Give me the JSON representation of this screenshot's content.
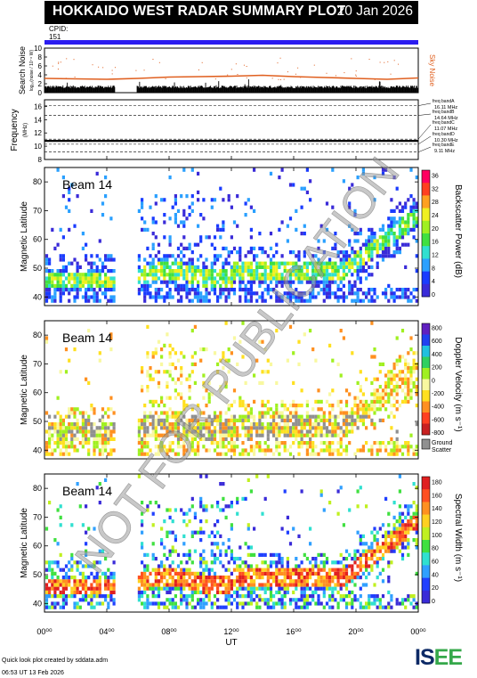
{
  "header": {
    "title": "HOKKAIDO WEST RADAR SUMMARY PLOT",
    "date": "20 Jan 2026"
  },
  "cpid": {
    "label": "CPID:",
    "value": "151"
  },
  "noise_panel": {
    "ylabel": "Search Noise",
    "unit": "log₁₀(noise / 10⁻⁶ W)",
    "side_label": "Sky Noise",
    "yticks": [
      "0",
      "2",
      "4",
      "6",
      "8",
      "10"
    ]
  },
  "freq_panel": {
    "ylabel": "Frequency",
    "unit": "(MHz)",
    "yticks": [
      "8",
      "10",
      "12",
      "14",
      "16"
    ],
    "bands": [
      {
        "name": "freq bandA",
        "value": "16.11 MHz"
      },
      {
        "name": "freq bandB",
        "value": "14.64 MHz"
      },
      {
        "name": "freq bandC",
        "value": "11.07 MHz"
      },
      {
        "name": "freq bandD",
        "value": "10.30 MHz"
      },
      {
        "name": "freq bandE",
        "value": "9.11 MHz"
      }
    ]
  },
  "panels": [
    {
      "beam": "Beam 14",
      "ylabel": "Magnetic Latitude",
      "cbar_label": "Backscatter Power (dB)",
      "cbar_ticks": [
        "0",
        "4",
        "8",
        "12",
        "16",
        "20",
        "24",
        "28",
        "32",
        "36"
      ]
    },
    {
      "beam": "Beam 14",
      "ylabel": "Magnetic Latitude",
      "cbar_label": "Doppler Velocity (m s⁻¹)",
      "cbar_ticks": [
        "-800",
        "-600",
        "-400",
        "-200",
        "0",
        "200",
        "400",
        "600",
        "800"
      ],
      "ground_label_1": "Ground",
      "ground_label_2": "Scatter"
    },
    {
      "beam": "Beam 14",
      "ylabel": "Magnetic Latitude",
      "cbar_label": "Spectral Width (m s⁻¹)",
      "cbar_ticks": [
        "0",
        "20",
        "40",
        "60",
        "80",
        "100",
        "120",
        "140",
        "160",
        "180"
      ]
    }
  ],
  "lat_ticks": [
    "40",
    "50",
    "60",
    "70",
    "80"
  ],
  "xaxis": {
    "ticks": [
      "00⁰⁰",
      "04⁰⁰",
      "08⁰⁰",
      "12⁰⁰",
      "16⁰⁰",
      "20⁰⁰",
      "00⁰⁰"
    ],
    "label": "UT"
  },
  "watermark": "NOT FOR PUBLICATION",
  "footer": {
    "line1": "Quick look plot created by sddata.adm",
    "line2": "06:53 UT 13 Feb 2026"
  },
  "logo": {
    "text1": "IS",
    "text2": "E",
    "text3": "E"
  },
  "colors": {
    "cpid_bar": "#2b1cf0",
    "sky_noise": "#e06020",
    "power_scale": [
      "#3a2bd8",
      "#1a3cff",
      "#2aa0ff",
      "#30e0d0",
      "#40e040",
      "#a0f020",
      "#f0f020",
      "#ffa020",
      "#ff4020",
      "#ff0060"
    ],
    "velocity_scale": [
      "#c82020",
      "#ff4020",
      "#ff9020",
      "#ffe020",
      "#f8f8a0",
      "#a0f020",
      "#30d060",
      "#20c0e0",
      "#2040f0",
      "#6020c0"
    ],
    "width_scale": [
      "#3a2bd8",
      "#2040ff",
      "#30a0ff",
      "#30e0d0",
      "#40e040",
      "#c0f020",
      "#ffd020",
      "#ff9020",
      "#ff5020",
      "#e02020"
    ],
    "ground": "#909090"
  },
  "chart_data": [
    {
      "type": "line",
      "title": "Search Noise",
      "ylabel": "Search Noise",
      "ylim": [
        0,
        10
      ],
      "x_range_ut_hours": [
        0,
        24
      ],
      "series": [
        {
          "name": "Sky Noise",
          "x": [
            0,
            2,
            4,
            6,
            8,
            10,
            12,
            14,
            16,
            18,
            20,
            22,
            24
          ],
          "values": [
            3.2,
            3.1,
            3.0,
            3.2,
            3.5,
            3.6,
            3.7,
            3.9,
            3.6,
            3.4,
            3.2,
            3.0,
            3.3
          ]
        }
      ]
    },
    {
      "type": "line",
      "title": "Frequency",
      "ylabel": "Frequency",
      "ylim": [
        8,
        17
      ],
      "x_range_ut_hours": [
        0,
        24
      ],
      "series": [
        {
          "x": [
            0,
            6,
            12,
            18,
            24
          ],
          "values": [
            10.8,
            10.8,
            10.8,
            10.8,
            10.8
          ]
        }
      ]
    },
    {
      "type": "heatmap",
      "title": "Beam 14",
      "ylabel": "Magnetic Latitude",
      "ylim": [
        37,
        85
      ],
      "x_range_ut_hours": [
        0,
        24
      ],
      "clim": [
        0,
        38
      ],
      "gap_ut_hours": [
        4.5,
        5.9
      ]
    },
    {
      "type": "heatmap",
      "title": "Beam 14",
      "ylabel": "Magnetic Latitude",
      "ylim": [
        37,
        85
      ],
      "x_range_ut_hours": [
        0,
        24
      ],
      "clim": [
        -900,
        900
      ],
      "gap_ut_hours": [
        4.5,
        5.9
      ]
    },
    {
      "type": "heatmap",
      "title": "Beam 14",
      "ylabel": "Magnetic Latitude",
      "ylim": [
        37,
        85
      ],
      "x_range_ut_hours": [
        0,
        24
      ],
      "clim": [
        0,
        190
      ],
      "gap_ut_hours": [
        4.5,
        5.9
      ]
    }
  ]
}
